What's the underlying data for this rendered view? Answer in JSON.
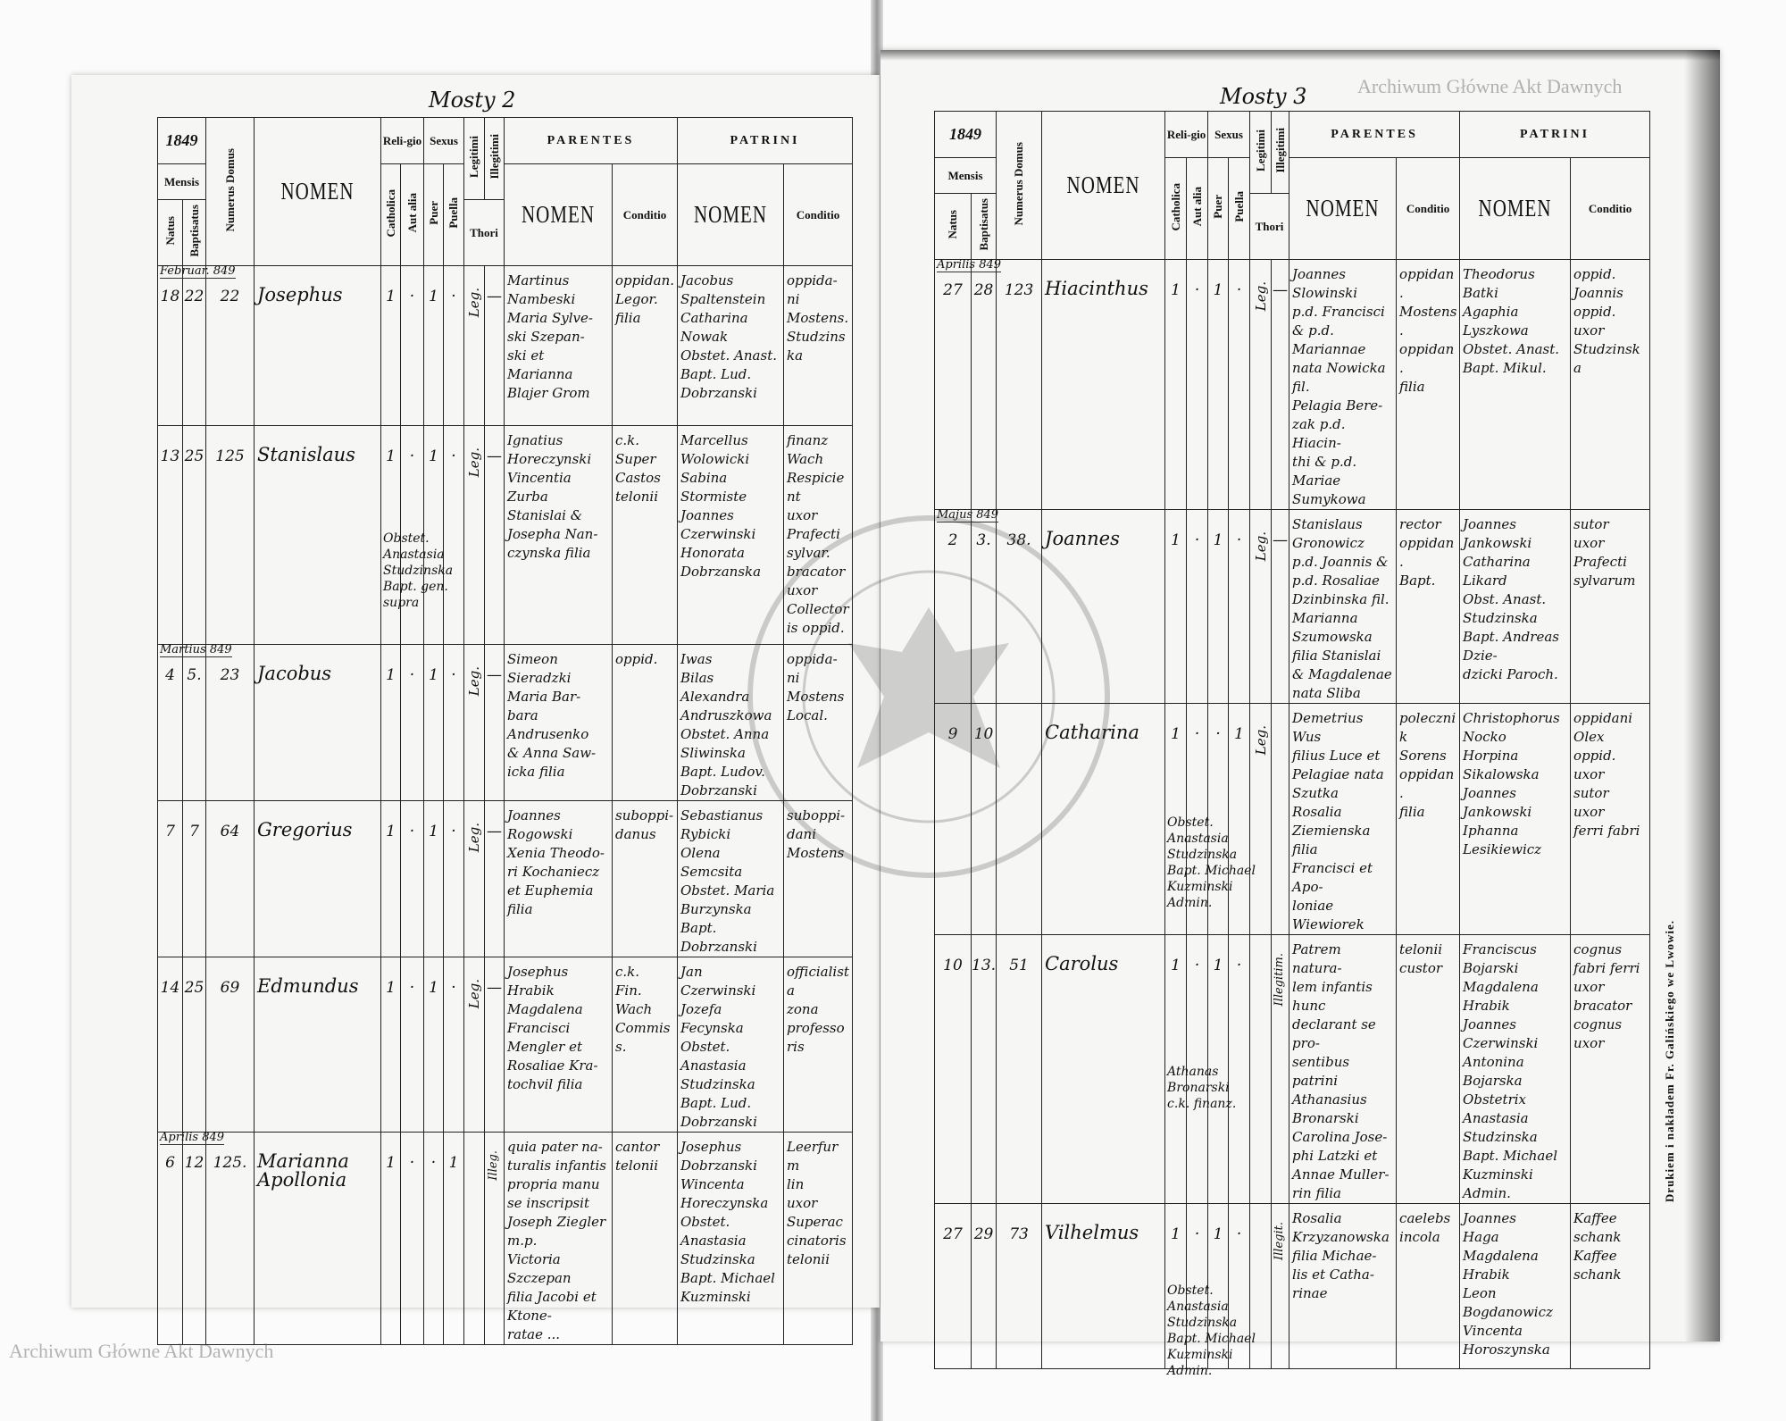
{
  "header": {
    "year": "1849",
    "mensis": "Mensis",
    "natus": "Natus",
    "baptisatus": "Baptisatus",
    "numerus_domus": "Numerus Domus",
    "nomen": "NOMEN",
    "religio": "Reli-gio",
    "catholica": "Catholica",
    "aut_alia": "Aut alia",
    "sexus": "Sexus",
    "puer": "Puer",
    "puella": "Puella",
    "legitimi": "Legitimi",
    "illegitimi": "Illegitimi",
    "thori": "Thori",
    "parentes": "PARENTES",
    "patrini": "PATRINI",
    "sub_nomen": "NOMEN",
    "conditio": "Conditio"
  },
  "pages": [
    {
      "folio": "Mosty 2",
      "entries": [
        {
          "month": "Februar. 849",
          "natus": "18",
          "baptisatus": "22",
          "domus": "22",
          "nomen": [
            "Josephus"
          ],
          "catholica": "1",
          "aut_alia": "·",
          "puer": "1",
          "puella": "·",
          "legitimi": "Leg.",
          "illegitimi": "—",
          "parentes_nomen": [
            "Martinus",
            "Nambeski",
            "Maria Sylve-",
            "ski Szepan-",
            "ski et Marianna",
            "Blajer Grom"
          ],
          "parentes_conditio": [
            "oppidan.",
            "",
            "",
            "",
            "Legor.",
            "filia"
          ],
          "patrini_nomen": [
            "Jacobus",
            "Spaltenstein",
            "Catharina",
            "Nowak",
            "Obstet. Anast.",
            "Bapt. Lud. Dobrzanski"
          ],
          "patrini_conditio": [
            "oppida-",
            "ni",
            "Mostens.",
            "",
            "Studzinska"
          ],
          "note": []
        },
        {
          "month": "",
          "natus": "13",
          "baptisatus": "25",
          "domus": "125",
          "nomen": [
            "Stanislaus"
          ],
          "catholica": "1",
          "aut_alia": "·",
          "puer": "1",
          "puella": "·",
          "legitimi": "Leg.",
          "illegitimi": "—",
          "parentes_nomen": [
            "Ignatius",
            "Horeczynski",
            "Vincentia",
            "Zurba",
            "Stanislai &",
            "Josepha Nan-",
            "czynska filia"
          ],
          "parentes_conditio": [
            "c.k.",
            "Super",
            "Castos",
            "telonii"
          ],
          "patrini_nomen": [
            "Marcellus",
            "Wolowicki",
            "Sabina",
            "Stormiste",
            "Joannes",
            "Czerwinski",
            "Honorata",
            "Dobrzanska"
          ],
          "patrini_conditio": [
            "finanz",
            "Wach",
            "Respicient",
            "uxor",
            "Prafecti",
            "sylvar.",
            "bracator",
            "uxor",
            "Collectoris oppid."
          ],
          "note": [
            "Obstet. Anastasia",
            "Studzinska",
            "Bapt. gen. supra"
          ]
        },
        {
          "month": "Martius 849",
          "natus": "4",
          "baptisatus": "5.",
          "domus": "23",
          "nomen": [
            "Jacobus"
          ],
          "catholica": "1",
          "aut_alia": "·",
          "puer": "1",
          "puella": "·",
          "legitimi": "Leg.",
          "illegitimi": "—",
          "parentes_nomen": [
            "Simeon",
            "Sieradzki",
            "Maria Bar-",
            "bara Andrusenko",
            "& Anna Saw-",
            "icka filia"
          ],
          "parentes_conditio": [
            "",
            "oppid."
          ],
          "patrini_nomen": [
            "Iwas",
            "Bilas",
            "Alexandra",
            "Andruszkowa",
            "Obstet. Anna Sliwinska",
            "Bapt. Ludov. Dobrzanski"
          ],
          "patrini_conditio": [
            "oppida-",
            "ni",
            "Mostens",
            "",
            "",
            "Local."
          ],
          "note": []
        },
        {
          "month": "",
          "natus": "7",
          "baptisatus": "7",
          "domus": "64",
          "nomen": [
            "Gregorius"
          ],
          "catholica": "1",
          "aut_alia": "·",
          "puer": "1",
          "puella": "·",
          "legitimi": "Leg.",
          "illegitimi": "—",
          "parentes_nomen": [
            "Joannes",
            "Rogowski",
            "Xenia Theodo-",
            "ri Kochaniecz",
            "et Euphemia filia"
          ],
          "parentes_conditio": [
            "",
            "suboppi-",
            "danus"
          ],
          "patrini_nomen": [
            "Sebastianus",
            "Rybicki",
            "Olena",
            "Semcsita",
            "Obstet. Maria Burzynska",
            "Bapt. Dobrzanski"
          ],
          "patrini_conditio": [
            "",
            "suboppi-",
            "dani",
            "Mostens"
          ],
          "note": []
        },
        {
          "month": "",
          "natus": "14",
          "baptisatus": "25",
          "domus": "69",
          "nomen": [
            "Edmundus"
          ],
          "catholica": "1",
          "aut_alia": "·",
          "puer": "1",
          "puella": "·",
          "legitimi": "Leg.",
          "illegitimi": "—",
          "parentes_nomen": [
            "Josephus",
            "Hrabik",
            "Magdalena",
            "Francisci",
            "Mengler et",
            "Rosaliae Kra-",
            "tochvil filia"
          ],
          "parentes_conditio": [
            "c.k.",
            "Fin. Wach",
            "Commiss."
          ],
          "patrini_nomen": [
            "Jan",
            "Czerwinski",
            "Jozefa",
            "Fecynska",
            "Obstet. Anastasia Studzinska",
            "Bapt. Lud. Dobrzanski"
          ],
          "patrini_conditio": [
            "officialista",
            "",
            "zona",
            "professoris"
          ],
          "note": []
        },
        {
          "month": "Aprilis 849",
          "natus": "6",
          "baptisatus": "12",
          "domus": "125.",
          "nomen": [
            "Marianna",
            "Apollonia"
          ],
          "catholica": "1",
          "aut_alia": "·",
          "puer": "·",
          "puella": "1",
          "legitimi": "",
          "illegitimi": "Illeg.",
          "parentes_nomen": [
            "quia pater na-",
            "turalis infantis",
            "propria manu",
            "se inscripsit",
            "Joseph Ziegler m.p.",
            "Victoria Szczepan",
            "filia Jacobi et Ktone-",
            "ratae ..."
          ],
          "parentes_conditio": [
            "",
            "",
            "cantor",
            "telonii"
          ],
          "patrini_nomen": [
            "Josephus",
            "Dobrzanski",
            "Wincenta",
            "Horeczynska",
            "Obstet. Anastasia Studzinska",
            "Bapt. Michael Kuzminski"
          ],
          "patrini_conditio": [
            "Leerfurm",
            "lin",
            "uxor",
            "Superaccinatoris",
            "telonii"
          ],
          "note": []
        }
      ]
    },
    {
      "folio": "Mosty 3",
      "entries": [
        {
          "month": "Aprilis 849",
          "natus": "27",
          "baptisatus": "28",
          "domus": "123",
          "nomen": [
            "Hiacinthus"
          ],
          "catholica": "1",
          "aut_alia": "·",
          "puer": "1",
          "puella": "·",
          "legitimi": "Leg.",
          "illegitimi": "—",
          "parentes_nomen": [
            "Joannes",
            "Slowinski",
            "p.d. Francisci",
            "& p.d. Mariannae",
            "nata Nowicka fil.",
            "Pelagia Bere-",
            "zak p.d. Hiacin-",
            "thi & p.d. Mariae",
            "Sumykowa"
          ],
          "parentes_conditio": [
            "oppidan.",
            "Mostens.",
            "",
            "",
            "",
            "oppidan.",
            "filia"
          ],
          "patrini_nomen": [
            "Theodorus",
            "Batki",
            "Agaphia",
            "Lyszkowa",
            "Obstet. Anast.",
            "Bapt. Mikul."
          ],
          "patrini_conditio": [
            "oppid.",
            "",
            "Joannis",
            "oppid. uxor",
            "Studzinska"
          ],
          "note": []
        },
        {
          "month": "Majus 849",
          "natus": "2",
          "baptisatus": "3.",
          "domus": "38.",
          "nomen": [
            "Joannes"
          ],
          "catholica": "1",
          "aut_alia": "·",
          "puer": "1",
          "puella": "·",
          "legitimi": "Leg.",
          "illegitimi": "—",
          "parentes_nomen": [
            "Stanislaus",
            "Gronowicz",
            "p.d. Joannis &",
            "p.d. Rosaliae",
            "Dzinbinska fil.",
            "Marianna",
            "Szumowska",
            "filia Stanislai",
            "& Magdalenae",
            "nata Sliba"
          ],
          "parentes_conditio": [
            "rector",
            "",
            "",
            "",
            "",
            "oppidan.",
            "",
            "Bapt."
          ],
          "patrini_nomen": [
            "Joannes",
            "Jankowski",
            "Catharina",
            "Likard",
            "",
            "Obst. Anast. Studzinska",
            "Bapt. Andreas Dzie-",
            "dzicki Paroch."
          ],
          "patrini_conditio": [
            "sutor",
            "uxor",
            "Prafecti",
            "sylvarum"
          ],
          "note": []
        },
        {
          "month": "",
          "natus": "9",
          "baptisatus": "10",
          "domus": "",
          "nomen": [
            "Catharina"
          ],
          "catholica": "1",
          "aut_alia": "·",
          "puer": "·",
          "puella": "1",
          "legitimi": "Leg.",
          "illegitimi": "",
          "parentes_nomen": [
            "Demetrius",
            "Wus",
            "filius Luce et",
            "Pelagiae nata",
            "Szutka",
            "Rosalia",
            "Ziemienska filia",
            "Francisci et Apo-",
            "loniae Wiewiorek"
          ],
          "parentes_conditio": [
            "polecznik",
            "Sorens",
            "",
            "",
            "oppidan.",
            "filia"
          ],
          "patrini_nomen": [
            "Christophorus",
            "Nocko",
            "Horpina",
            "Sikalowska",
            "Joannes",
            "Jankowski",
            "Iphanna",
            "Lesikiewicz"
          ],
          "patrini_conditio": [
            "oppidani",
            "",
            "Olex oppid.",
            "uxor",
            "",
            "sutor",
            "uxor",
            "ferri fabri"
          ],
          "note": [
            "Obstet. Anastasia",
            "Studzinska",
            "Bapt. Michael",
            "Kuzminski Admin."
          ]
        },
        {
          "month": "",
          "natus": "10",
          "baptisatus": "13.",
          "domus": "51",
          "nomen": [
            "Carolus"
          ],
          "catholica": "1",
          "aut_alia": "·",
          "puer": "1",
          "puella": "·",
          "legitimi": "",
          "illegitimi": "Illegitim.",
          "parentes_nomen": [
            "Patrem natura-",
            "lem infantis hunc",
            "declarant se pro-",
            "sentibus patrini",
            "Athanasius",
            "Bronarski",
            "Carolina Jose-",
            "phi Latzki et",
            "Annae Muller-",
            "rin filia"
          ],
          "parentes_conditio": [
            "",
            "",
            "",
            "",
            "telonii",
            "custor"
          ],
          "patrini_nomen": [
            "Franciscus",
            "Bojarski",
            "Magdalena",
            "Hrabik",
            "Joannes",
            "Czerwinski",
            "Antonina",
            "Bojarska",
            "Obstetrix Anastasia Studzinska",
            "Bapt. Michael Kuzminski Admin."
          ],
          "patrini_conditio": [
            "cognus",
            "fabri ferri",
            "uxor",
            "",
            "bracator",
            "cognus",
            "uxor"
          ],
          "note": [
            "Athanas",
            "Bronarski",
            "c.k. finanz."
          ]
        },
        {
          "month": "",
          "natus": "27",
          "baptisatus": "29",
          "domus": "73",
          "nomen": [
            "Vilhelmus"
          ],
          "catholica": "1",
          "aut_alia": "·",
          "puer": "1",
          "puella": "·",
          "legitimi": "",
          "illegitimi": "Illegit.",
          "parentes_nomen": [
            "Rosalia",
            "Krzyzanowska",
            "filia Michae-",
            "lis et Catha-",
            "rinae"
          ],
          "parentes_conditio": [
            "caelebs",
            "incola"
          ],
          "patrini_nomen": [
            "Joannes",
            "Haga",
            "Magdalena",
            "Hrabik",
            "Leon",
            "Bogdanowicz",
            "Vincenta",
            "Horoszynska"
          ],
          "patrini_conditio": [
            "Kaffee",
            "schank",
            "",
            "Kaffee",
            "schank"
          ],
          "note": [
            "Obstet. Anastasia Studzinska",
            "Bapt. Michael Kuzminski Admin."
          ]
        }
      ]
    }
  ],
  "printer_imprint": "Drukiem i nakładem Fr. Galińskiego we Lwowie.",
  "watermark": "Archiwum Główne Akt Dawnych",
  "stamp_text": "ARCHIWUM GŁÓWNE AKT DAWNYCH"
}
